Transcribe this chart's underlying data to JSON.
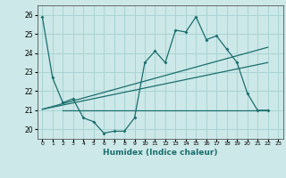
{
  "xlabel": "Humidex (Indice chaleur)",
  "background_color": "#cde8e8",
  "grid_color": "#a8d4d4",
  "line_color": "#1a6e6e",
  "ylim": [
    19.5,
    26.5
  ],
  "xlim": [
    -0.5,
    23.5
  ],
  "yticks": [
    20,
    21,
    22,
    23,
    24,
    25,
    26
  ],
  "xticks": [
    0,
    1,
    2,
    3,
    4,
    5,
    6,
    7,
    8,
    9,
    10,
    11,
    12,
    13,
    14,
    15,
    16,
    17,
    18,
    19,
    20,
    21,
    22,
    23
  ],
  "main_series": [
    [
      0,
      25.9
    ],
    [
      1,
      22.7
    ],
    [
      2,
      21.4
    ],
    [
      3,
      21.6
    ],
    [
      4,
      20.6
    ],
    [
      5,
      20.4
    ],
    [
      6,
      19.8
    ],
    [
      7,
      19.9
    ],
    [
      8,
      19.9
    ],
    [
      9,
      20.6
    ],
    [
      10,
      23.5
    ],
    [
      11,
      24.1
    ],
    [
      12,
      23.5
    ],
    [
      13,
      25.2
    ],
    [
      14,
      25.1
    ],
    [
      15,
      25.9
    ],
    [
      16,
      24.7
    ],
    [
      17,
      24.9
    ],
    [
      18,
      24.2
    ],
    [
      19,
      23.5
    ],
    [
      20,
      21.9
    ],
    [
      21,
      21.0
    ],
    [
      22,
      21.0
    ]
  ],
  "trend_line1": [
    [
      0,
      21.05
    ],
    [
      22,
      24.3
    ]
  ],
  "trend_line2": [
    [
      0,
      21.05
    ],
    [
      22,
      23.5
    ]
  ],
  "hline_y": 21.0,
  "hline_x": [
    2,
    22
  ]
}
